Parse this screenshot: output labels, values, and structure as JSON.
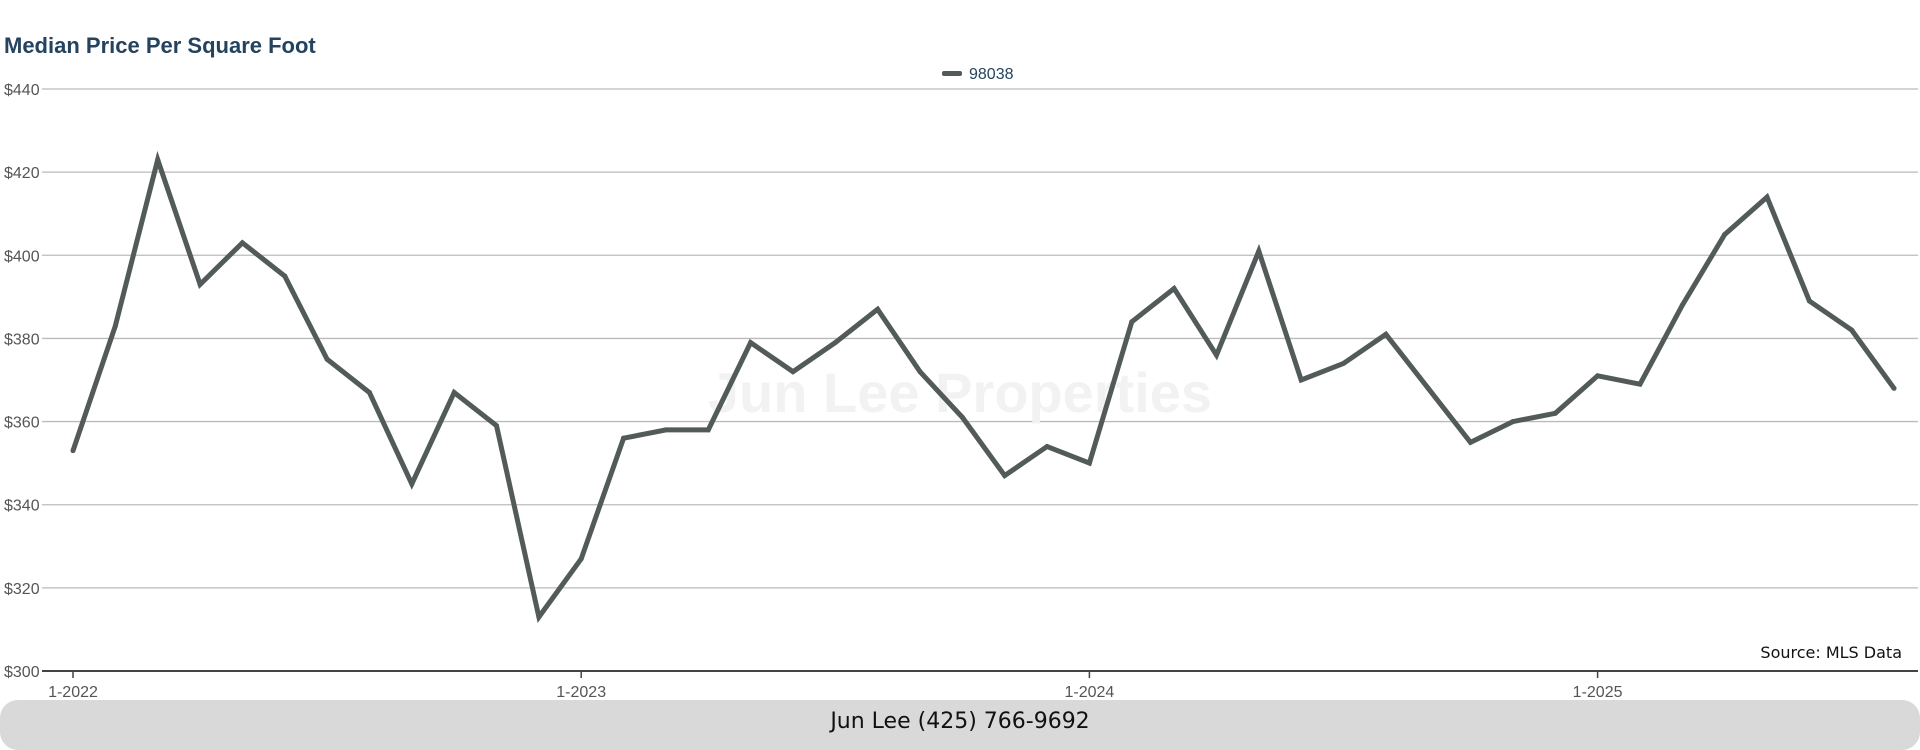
{
  "footer": {
    "contact": "Jun Lee (425) 766-9692"
  },
  "colors": {
    "series": "#525b5a",
    "title": "#23435f",
    "gridline": "#bbbbbb",
    "footer_bg": "#d9d9d9"
  },
  "chart_data": {
    "type": "line",
    "title": "Median Price Per Square Foot",
    "watermark": "Jun Lee Properties",
    "source_note": "Source: MLS Data",
    "legend_position": "top-center",
    "grid": true,
    "xlabel": "",
    "ylabel": "",
    "ylim": [
      300,
      440
    ],
    "y_ticks": [
      {
        "value": 300,
        "label": "$300"
      },
      {
        "value": 320,
        "label": "$320"
      },
      {
        "value": 340,
        "label": "$340"
      },
      {
        "value": 360,
        "label": "$360"
      },
      {
        "value": 380,
        "label": "$380"
      },
      {
        "value": 400,
        "label": "$400"
      },
      {
        "value": 420,
        "label": "$420"
      },
      {
        "value": 440,
        "label": "$440"
      }
    ],
    "x_ticks": [
      {
        "index": 0,
        "label": "1-2022"
      },
      {
        "index": 12,
        "label": "1-2023"
      },
      {
        "index": 24,
        "label": "1-2024"
      },
      {
        "index": 36,
        "label": "1-2025"
      }
    ],
    "series": [
      {
        "name": "98038",
        "color": "#525b5a",
        "values": [
          353,
          383,
          423,
          393,
          403,
          395,
          375,
          367,
          345,
          367,
          359,
          313,
          327,
          356,
          358,
          358,
          379,
          372,
          379,
          387,
          372,
          361,
          347,
          354,
          350,
          384,
          392,
          376,
          401,
          370,
          374,
          381,
          368,
          355,
          360,
          362,
          371,
          369,
          388,
          405,
          414,
          389,
          382,
          368
        ]
      }
    ]
  }
}
